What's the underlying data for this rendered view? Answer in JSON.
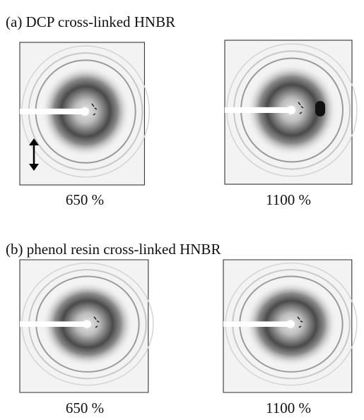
{
  "panels": [
    {
      "title": "(a) DCP cross-linked HNBR",
      "images": [
        {
          "label": "650 %"
        },
        {
          "label": "1100 %"
        }
      ]
    },
    {
      "title": "(b) phenol resin cross-linked HNBR",
      "images": [
        {
          "label": "650 %"
        },
        {
          "label": "1100 %"
        }
      ]
    }
  ]
}
